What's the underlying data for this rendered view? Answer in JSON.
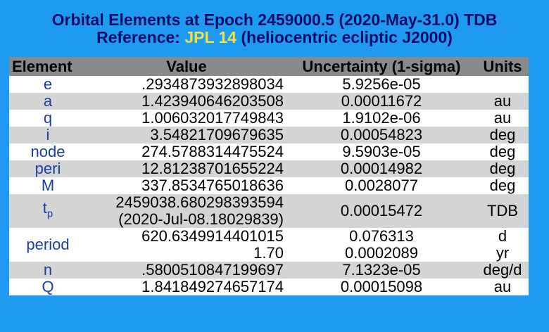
{
  "heading": {
    "line1": "Orbital Elements at Epoch 2459000.5 (2020-May-31.0) TDB",
    "line2_prefix": "Reference: ",
    "line2_link": "JPL 14",
    "line2_suffix": " (heliocentric ecliptic J2000)"
  },
  "table": {
    "headers": {
      "element": "Element",
      "value": "Value",
      "uncertainty": "Uncertainty (1-sigma)",
      "units": "Units"
    },
    "rows": [
      {
        "element": "e",
        "value": ".2934873932898034",
        "uncertainty": "5.9256e-05",
        "units": ""
      },
      {
        "element": "a",
        "value": "1.423940646203508",
        "uncertainty": "0.00011672",
        "units": "au"
      },
      {
        "element": "q",
        "value": "1.006032017749843",
        "uncertainty": "1.9102e-06",
        "units": "au"
      },
      {
        "element": "i",
        "value": "3.54821709679635",
        "uncertainty": "0.00054823",
        "units": "deg"
      },
      {
        "element": "node",
        "value": "274.5788314475524",
        "uncertainty": "9.5903e-05",
        "units": "deg"
      },
      {
        "element": "peri",
        "value": "12.81238701655224",
        "uncertainty": "0.00014982",
        "units": "deg"
      },
      {
        "element": "M",
        "value": "337.8534765018636",
        "uncertainty": "0.0028077",
        "units": "deg"
      }
    ],
    "tp": {
      "element_base": "t",
      "element_sub": "p",
      "value_line1": "2459038.680298393594",
      "value_line2": "(2020-Jul-08.18029839)",
      "uncertainty": "0.00015472",
      "units": "TDB"
    },
    "period": {
      "element": "period",
      "value_line1": "620.6349914401015",
      "value_line2": "1.70",
      "uncertainty_line1": "0.076313",
      "uncertainty_line2": "0.0002089",
      "units_line1": "d",
      "units_line2": "yr"
    },
    "rows_after": [
      {
        "element": "n",
        "value": ".5800510847199697",
        "uncertainty": "7.1323e-05",
        "units": "deg/d"
      },
      {
        "element": "Q",
        "value": "1.841849274657174",
        "uncertainty": "0.00015098",
        "units": "au"
      }
    ]
  },
  "colors": {
    "background": "#1e9bf0",
    "heading_text": "#0c0c6a",
    "link": "#f0e040",
    "header_row": "#8a8a8a",
    "row_light": "#ffffff",
    "row_gray": "#d4d4d4",
    "element_text": "#1b3fa8"
  }
}
